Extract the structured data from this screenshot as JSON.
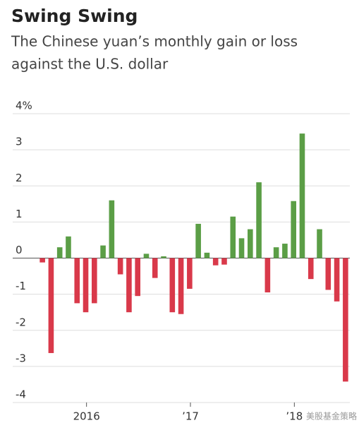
{
  "chart_data": {
    "type": "bar",
    "title": "Swing Swing",
    "subtitle": [
      "The Chinese yuan’s monthly gain or loss",
      "against the U.S. dollar"
    ],
    "categories": [
      null,
      null,
      null,
      null,
      null,
      null,
      "2016",
      null,
      null,
      null,
      null,
      null,
      null,
      null,
      null,
      null,
      null,
      null,
      "’17",
      null,
      null,
      null,
      null,
      null,
      null,
      null,
      null,
      null,
      null,
      null,
      "’18",
      null,
      null,
      null,
      null,
      null
    ],
    "values": [
      -0.12,
      -2.63,
      0.3,
      0.6,
      -1.25,
      -1.5,
      -1.25,
      0.35,
      1.6,
      -0.45,
      -1.5,
      -1.05,
      0.12,
      -0.55,
      0.05,
      -1.5,
      -1.55,
      -0.85,
      0.95,
      0.15,
      -0.2,
      -0.18,
      1.15,
      0.55,
      0.8,
      2.1,
      -0.95,
      0.3,
      0.4,
      1.58,
      3.45,
      -0.58,
      0.8,
      -0.88,
      -1.2,
      -3.42
    ],
    "positive_color": "#5b9e46",
    "negative_color": "#d9394a",
    "ylim": [
      -4,
      4
    ],
    "yticks": [
      {
        "value": 4,
        "label": "4%"
      },
      3,
      2,
      1,
      0,
      -1,
      -2,
      -3,
      -4
    ],
    "grid": true,
    "watermark": "美股基金策略"
  }
}
